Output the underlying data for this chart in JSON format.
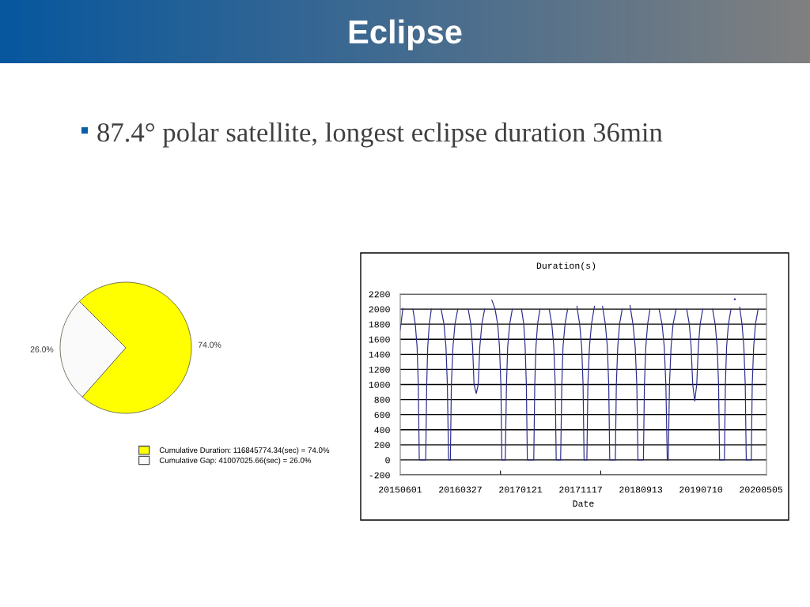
{
  "chart_data": [
    {
      "type": "other",
      "title": "Eclipse",
      "subtitle": "87.4° polar satellite, longest eclipse duration 36min"
    },
    {
      "type": "pie",
      "categories": [
        "Cumulative Duration: 116845774.34(sec) = 74.0%",
        "Cumulative Gap: 41007025.66(sec) = 26.0%"
      ],
      "values": [
        74.0,
        26.0
      ],
      "colors": [
        "#ffff00",
        "#fafafa"
      ],
      "value_labels": [
        "74.0%",
        "26.0%"
      ],
      "legend": "bottom right"
    },
    {
      "type": "line",
      "title": "Duration(s)",
      "xlabel": "Date",
      "xlim": [
        "2015-06-01",
        "2020-06-01"
      ],
      "ylim": [
        -200,
        2200
      ],
      "yticks": [
        -200,
        0,
        200,
        400,
        600,
        800,
        1000,
        1200,
        1400,
        1600,
        1800,
        2000,
        2200
      ],
      "xticks": [
        {
          "value": "2015-06-01",
          "label": "20150601"
        },
        {
          "value": "2016-03-27",
          "label": "20160327"
        },
        {
          "value": "2016-10-13",
          "label": null
        },
        {
          "value": "2017-01-21",
          "label": "20170121"
        },
        {
          "value": "2017-11-17",
          "label": "20171117"
        },
        {
          "value": "2018-02-25",
          "label": null
        },
        {
          "value": "2018-09-13",
          "label": "20180913"
        },
        {
          "value": "2019-07-10",
          "label": "20190710"
        },
        {
          "value": "2020-05-05",
          "label": "20200505"
        }
      ],
      "grid": "y",
      "x": [
        "2015-06-01",
        "2015-06-14",
        "2015-07-10",
        "2015-08-03",
        "2015-08-15",
        "2015-08-24",
        "2015-08-30",
        "2015-09-04",
        "2015-10-06",
        "2015-10-11",
        "2015-10-16",
        "2015-10-24",
        "2015-11-03",
        "2015-11-27",
        "2015-12-22",
        "2016-01-05",
        "2016-01-15",
        "2016-01-22",
        "2016-01-28",
        "2016-02-06",
        "2016-02-11",
        "2016-02-19",
        "2016-02-29",
        "2016-03-14",
        "2016-04-09",
        "2016-05-05",
        "2016-05-18",
        "2016-05-27",
        "2016-06-03",
        "2016-06-14",
        "2016-06-24",
        "2016-07-02",
        "2016-07-12",
        "2016-07-26",
        "2016-08-13",
        "2016-08-31",
        "2016-09-16",
        "2016-09-29",
        "2016-10-08",
        "2016-10-15",
        "2016-10-20",
        "2016-11-06",
        "2016-11-12",
        "2016-11-18",
        "2016-11-28",
        "2016-12-11",
        "2017-01-02",
        "2017-01-26",
        "2017-02-06",
        "2017-02-13",
        "2017-02-19",
        "2017-02-24",
        "2017-03-28",
        "2017-04-02",
        "2017-04-08",
        "2017-04-16",
        "2017-04-28",
        "2017-05-20",
        "2017-06-13",
        "2017-06-26",
        "2017-07-06",
        "2017-07-13",
        "2017-07-18",
        "2017-08-09",
        "2017-08-15",
        "2017-08-21",
        "2017-08-31",
        "2017-09-13",
        "2017-10-05",
        "2017-10-29",
        "2017-11-12",
        "2017-11-22",
        "2017-11-29",
        "2017-12-04",
        "2017-12-18",
        "2017-12-23",
        "2017-12-31",
        "2018-01-10",
        "2018-01-25",
        "2018-02-13",
        "2018-03-06",
        "2018-03-20",
        "2018-03-30",
        "2018-04-06",
        "2018-04-11",
        "2018-05-09",
        "2018-05-14",
        "2018-05-21",
        "2018-05-30",
        "2018-06-12",
        "2018-07-01",
        "2018-07-21",
        "2018-08-05",
        "2018-08-16",
        "2018-08-24",
        "2018-08-30",
        "2018-09-26",
        "2018-10-01",
        "2018-10-08",
        "2018-10-17",
        "2018-10-29",
        "2018-11-20",
        "2018-12-13",
        "2018-12-28",
        "2019-01-08",
        "2019-01-16",
        "2019-01-23",
        "2019-01-28",
        "2019-02-03",
        "2019-02-11",
        "2019-02-21",
        "2019-03-08",
        "2019-04-03",
        "2019-04-30",
        "2019-05-13",
        "2019-05-22",
        "2019-05-30",
        "2019-06-09",
        "2019-06-19",
        "2019-06-27",
        "2019-07-06",
        "2019-07-19",
        "2019-08-13",
        "2019-09-06",
        "2019-09-19",
        "2019-09-29",
        "2019-10-06",
        "2019-10-11",
        "2019-11-04",
        "2019-11-09",
        "2019-11-15",
        "2019-11-24",
        "2019-12-07",
        "2019-12-14",
        "2019-12-26",
        "2020-01-08",
        "2020-01-19",
        "2020-01-31",
        "2020-02-09",
        "2020-02-16",
        "2020-02-21",
        "2020-03-17",
        "2020-03-22",
        "2020-03-29",
        "2020-04-07",
        "2020-04-20"
      ],
      "series": [
        {
          "color": "#2a2a8c",
          "values": [
            1720,
            2010,
            null,
            2000,
            1800,
            1500,
            1000,
            0,
            0,
            1000,
            1500,
            1800,
            2000,
            null,
            2000,
            1800,
            1500,
            1000,
            0,
            0,
            1000,
            1500,
            1800,
            2000,
            null,
            2000,
            1800,
            1500,
            1000,
            880,
            1000,
            1500,
            1800,
            2000,
            null,
            2120,
            2000,
            1800,
            1500,
            1000,
            0,
            0,
            1000,
            1500,
            1800,
            2000,
            null,
            2000,
            1800,
            1500,
            1000,
            0,
            0,
            1000,
            1500,
            1800,
            2000,
            null,
            2000,
            1800,
            1500,
            1000,
            0,
            0,
            1000,
            1500,
            1800,
            2000,
            null,
            2040,
            1800,
            1500,
            1000,
            0,
            0,
            1000,
            1500,
            1800,
            2040,
            null,
            2040,
            1800,
            1500,
            1000,
            0,
            0,
            1000,
            1500,
            1800,
            2000,
            null,
            2050,
            1800,
            1500,
            1000,
            0,
            0,
            1000,
            1500,
            1800,
            2000,
            null,
            2000,
            1800,
            1500,
            1000,
            0,
            0,
            1000,
            1500,
            1800,
            2000,
            null,
            2000,
            1800,
            1500,
            1000,
            780,
            1000,
            1500,
            1800,
            2000,
            null,
            2000,
            1800,
            1500,
            1000,
            0,
            0,
            1000,
            1500,
            1800,
            2000,
            null,
            2130,
            null,
            2030,
            1800,
            1500,
            1000,
            0,
            0,
            1000,
            1500,
            1800,
            2000
          ]
        }
      ]
    }
  ]
}
